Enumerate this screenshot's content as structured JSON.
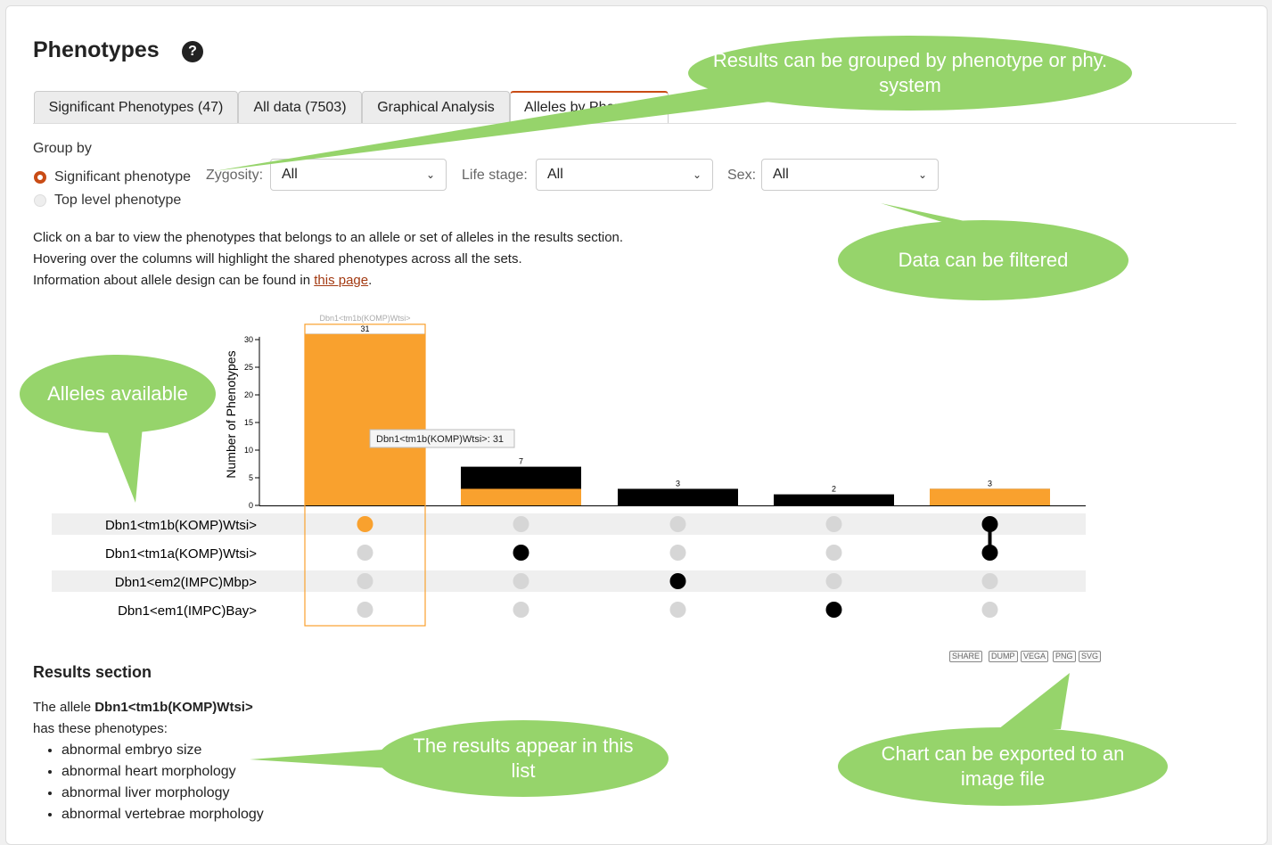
{
  "page": {
    "title": "Phenotypes",
    "help_icon": "?"
  },
  "tabs": [
    {
      "label": "Significant Phenotypes (47)"
    },
    {
      "label": "All data (7503)"
    },
    {
      "label": "Graphical Analysis"
    },
    {
      "label": "Alleles by Phenot"
    }
  ],
  "group_by": {
    "label": "Group by",
    "options": [
      "Significant phenotype",
      "Top level phenotype"
    ]
  },
  "filters": {
    "zygosity": {
      "label": "Zygosity:",
      "value": "All"
    },
    "life_stage": {
      "label": "Life stage:",
      "value": "All"
    },
    "sex": {
      "label": "Sex:",
      "value": "All"
    }
  },
  "instructions": {
    "line1": "Click on a bar to view the phenotypes that belongs to an allele or set of alleles in the results section.",
    "line2": "Hovering over the columns will highlight the shared phenotypes across all the sets.",
    "line3_prefix": "Information about allele design can be found in ",
    "line3_link": "this page",
    "line3_suffix": "."
  },
  "chart_data": {
    "type": "bar",
    "ylabel": "Number of Phenotypes",
    "ylim": [
      0,
      32
    ],
    "y_ticks": [
      "0",
      "5",
      "10",
      "15",
      "20",
      "25",
      "30"
    ],
    "selected_label": "Dbn1<tm1b(KOMP)Wtsi>",
    "tooltip": "Dbn1<tm1b(KOMP)Wtsi>: 31",
    "sets": [
      "Dbn1<tm1b(KOMP)Wtsi>",
      "Dbn1<tm1a(KOMP)Wtsi>",
      "Dbn1<em2(IMPC)Mbp>",
      "Dbn1<em1(IMPC)Bay>"
    ],
    "columns": [
      {
        "total": 31,
        "label": "31",
        "highlight": 31,
        "members": [
          0
        ]
      },
      {
        "total": 7,
        "label": "7",
        "highlight": 3,
        "members": [
          1
        ]
      },
      {
        "total": 3,
        "label": "3",
        "highlight": 0,
        "members": [
          2
        ]
      },
      {
        "total": 2,
        "label": "2",
        "highlight": 0,
        "members": [
          3
        ]
      },
      {
        "total": 3,
        "label": "3",
        "highlight": 3,
        "members": [
          0,
          1
        ]
      }
    ],
    "colors": {
      "highlight": "#f9a12e",
      "base": "#000000",
      "dot_inactive": "#d6d6d6"
    }
  },
  "export_buttons": [
    "SHARE",
    "DUMP",
    "VEGA",
    "PNG",
    "SVG"
  ],
  "results": {
    "title": "Results section",
    "intro_prefix": "The allele ",
    "allele": "Dbn1<tm1b(KOMP)Wtsi>",
    "intro_suffix": "has these phenotypes:",
    "items": [
      "abnormal embryo size",
      "abnormal heart morphology",
      "abnormal liver morphology",
      "abnormal vertebrae morphology"
    ]
  },
  "callouts": {
    "grouped": "Results can be grouped by phenotype or phy. system",
    "filtered": "Data can be filtered",
    "alleles": "Alleles available",
    "results": "The results appear in this list",
    "export": "Chart can be exported to an image file"
  }
}
